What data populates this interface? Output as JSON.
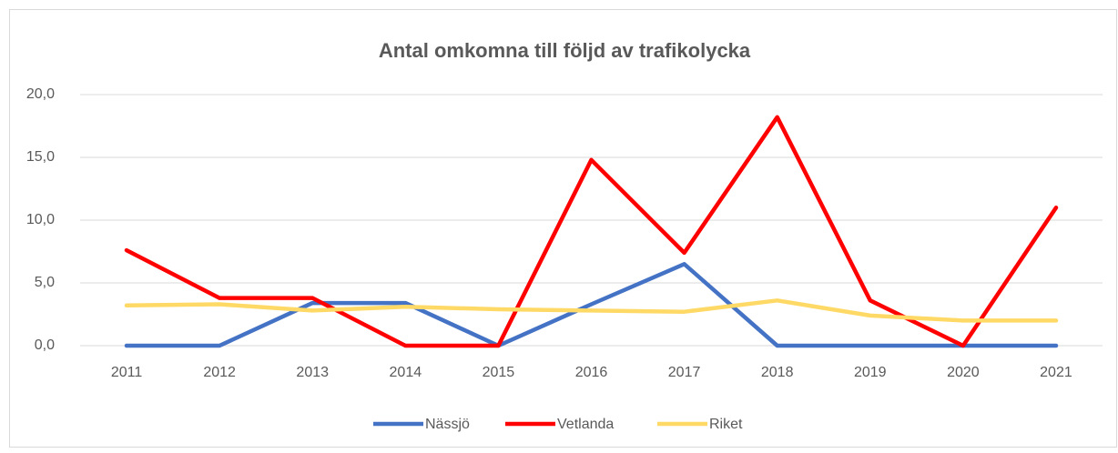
{
  "chart_data": {
    "type": "line",
    "title": "Antal omkomna till följd av trafikolycka",
    "categories": [
      "2011",
      "2012",
      "2013",
      "2014",
      "2015",
      "2016",
      "2017",
      "2018",
      "2019",
      "2020",
      "2021"
    ],
    "series": [
      {
        "name": "Nässjö",
        "color": "#4472c4",
        "values": [
          0,
          0,
          3.4,
          3.4,
          0,
          3.3,
          6.5,
          0,
          0,
          0,
          0
        ]
      },
      {
        "name": "Vetlanda",
        "color": "#ff0000",
        "values": [
          7.6,
          3.8,
          3.8,
          0,
          0,
          14.8,
          7.4,
          18.2,
          3.6,
          0,
          11.0
        ]
      },
      {
        "name": "Riket",
        "color": "#ffd966",
        "values": [
          3.2,
          3.3,
          2.8,
          3.1,
          2.9,
          2.8,
          2.7,
          3.6,
          2.4,
          2.0,
          2.0
        ]
      }
    ],
    "ylim": [
      0,
      20
    ],
    "yticks": [
      {
        "value": 0,
        "label": "0,0"
      },
      {
        "value": 5,
        "label": "5,0"
      },
      {
        "value": 10,
        "label": "10,0"
      },
      {
        "value": 15,
        "label": "15,0"
      },
      {
        "value": 20,
        "label": "20,0"
      }
    ],
    "grid": true,
    "legend": "bottom"
  }
}
